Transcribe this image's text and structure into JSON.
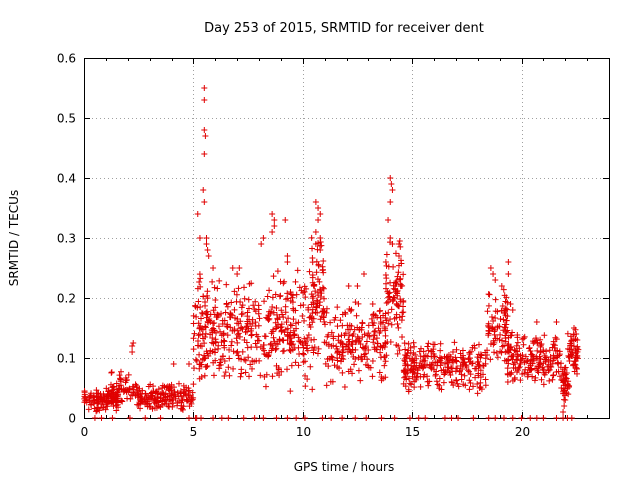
{
  "chart_data": {
    "type": "scatter",
    "title": "Day 253 of 2015, SRMTID for receiver dent",
    "xlabel": "GPS time / hours",
    "ylabel": "SRMTID / TECUs",
    "xlim": [
      0,
      24
    ],
    "ylim": [
      0,
      0.6
    ],
    "xticks": [
      "0",
      "5",
      "10",
      "15",
      "20"
    ],
    "yticks": [
      "0",
      "0.1",
      "0.2",
      "0.3",
      "0.4",
      "0.5",
      "0.6"
    ],
    "grid": true,
    "marker": "+",
    "color": "#e00000",
    "series": [
      {
        "name": "SRMTID",
        "segments": [
          {
            "x0": 0.0,
            "x1": 1.6,
            "lo": 0.01,
            "hi": 0.05,
            "n": 110
          },
          {
            "x0": 1.0,
            "x1": 2.4,
            "lo": 0.02,
            "hi": 0.08,
            "n": 70
          },
          {
            "x0": 2.4,
            "x1": 5.0,
            "lo": 0.01,
            "hi": 0.06,
            "n": 170
          },
          {
            "x0": 5.0,
            "x1": 5.6,
            "lo": 0.03,
            "hi": 0.25,
            "n": 60
          },
          {
            "x0": 5.5,
            "x1": 7.5,
            "lo": 0.06,
            "hi": 0.24,
            "n": 160
          },
          {
            "x0": 7.5,
            "x1": 10.5,
            "lo": 0.04,
            "hi": 0.26,
            "n": 230
          },
          {
            "x0": 10.4,
            "x1": 11.0,
            "lo": 0.1,
            "hi": 0.32,
            "n": 70
          },
          {
            "x0": 11.0,
            "x1": 13.8,
            "lo": 0.05,
            "hi": 0.2,
            "n": 200
          },
          {
            "x0": 13.8,
            "x1": 14.6,
            "lo": 0.1,
            "hi": 0.3,
            "n": 80
          },
          {
            "x0": 14.6,
            "x1": 18.4,
            "lo": 0.04,
            "hi": 0.13,
            "n": 260
          },
          {
            "x0": 18.4,
            "x1": 19.4,
            "lo": 0.08,
            "hi": 0.22,
            "n": 80
          },
          {
            "x0": 19.3,
            "x1": 21.8,
            "lo": 0.05,
            "hi": 0.15,
            "n": 180
          },
          {
            "x0": 21.8,
            "x1": 22.2,
            "lo": 0.02,
            "hi": 0.1,
            "n": 40
          },
          {
            "x0": 22.1,
            "x1": 22.6,
            "lo": 0.07,
            "hi": 0.15,
            "n": 50
          }
        ],
        "spikes": [
          [
            2.2,
            0.12
          ],
          [
            2.2,
            0.11
          ],
          [
            2.25,
            0.125
          ],
          [
            4.1,
            0.09
          ],
          [
            4.8,
            0.09
          ],
          [
            5.5,
            0.55
          ],
          [
            5.5,
            0.53
          ],
          [
            5.5,
            0.48
          ],
          [
            5.55,
            0.47
          ],
          [
            5.5,
            0.44
          ],
          [
            5.45,
            0.38
          ],
          [
            5.5,
            0.36
          ],
          [
            5.6,
            0.3
          ],
          [
            5.6,
            0.29
          ],
          [
            5.65,
            0.28
          ],
          [
            5.7,
            0.27
          ],
          [
            5.2,
            0.34
          ],
          [
            5.3,
            0.3
          ],
          [
            5.9,
            0.25
          ],
          [
            6.8,
            0.25
          ],
          [
            7.0,
            0.24
          ],
          [
            7.1,
            0.25
          ],
          [
            8.1,
            0.29
          ],
          [
            8.2,
            0.3
          ],
          [
            8.6,
            0.34
          ],
          [
            8.7,
            0.33
          ],
          [
            8.7,
            0.32
          ],
          [
            8.6,
            0.31
          ],
          [
            9.2,
            0.33
          ],
          [
            9.3,
            0.27
          ],
          [
            9.3,
            0.26
          ],
          [
            10.6,
            0.36
          ],
          [
            10.7,
            0.35
          ],
          [
            10.8,
            0.34
          ],
          [
            10.7,
            0.33
          ],
          [
            10.6,
            0.31
          ],
          [
            10.8,
            0.3
          ],
          [
            10.6,
            0.29
          ],
          [
            10.8,
            0.28
          ],
          [
            12.1,
            0.22
          ],
          [
            12.5,
            0.22
          ],
          [
            12.8,
            0.24
          ],
          [
            13.2,
            0.19
          ],
          [
            14.0,
            0.4
          ],
          [
            14.05,
            0.39
          ],
          [
            14.1,
            0.38
          ],
          [
            14.0,
            0.36
          ],
          [
            13.9,
            0.33
          ],
          [
            14.0,
            0.3
          ],
          [
            14.1,
            0.29
          ],
          [
            13.8,
            0.26
          ],
          [
            14.4,
            0.29
          ],
          [
            14.4,
            0.27
          ],
          [
            14.5,
            0.22
          ],
          [
            14.3,
            0.21
          ],
          [
            14.2,
            0.2
          ],
          [
            18.6,
            0.25
          ],
          [
            18.7,
            0.24
          ],
          [
            18.8,
            0.23
          ],
          [
            19.1,
            0.22
          ],
          [
            19.4,
            0.26
          ],
          [
            19.4,
            0.24
          ],
          [
            19.5,
            0.19
          ],
          [
            19.6,
            0.18
          ],
          [
            20.7,
            0.16
          ],
          [
            21.6,
            0.16
          ],
          [
            22.4,
            0.15
          ],
          [
            22.5,
            0.14
          ],
          [
            21.9,
            0.01
          ],
          [
            21.95,
            0.02
          ],
          [
            22.0,
            0.03
          ]
        ],
        "zeros": [
          0.5,
          0.8,
          1.3,
          2.1,
          2.8,
          3.5,
          4.8,
          5.1,
          5.15,
          5.35,
          5.9,
          6.3,
          6.6,
          7.3,
          7.8,
          8.2,
          8.8,
          9.3,
          9.7,
          10.1,
          10.9,
          11.3,
          11.8,
          12.4,
          12.9,
          13.6,
          14.2,
          14.9,
          15.3,
          15.6,
          16.5,
          16.8,
          17.1,
          17.8,
          18.5,
          18.8,
          19.2,
          19.6,
          20.0,
          20.4,
          20.7,
          21.0,
          21.6,
          21.9,
          22.1,
          22.3
        ]
      }
    ]
  }
}
